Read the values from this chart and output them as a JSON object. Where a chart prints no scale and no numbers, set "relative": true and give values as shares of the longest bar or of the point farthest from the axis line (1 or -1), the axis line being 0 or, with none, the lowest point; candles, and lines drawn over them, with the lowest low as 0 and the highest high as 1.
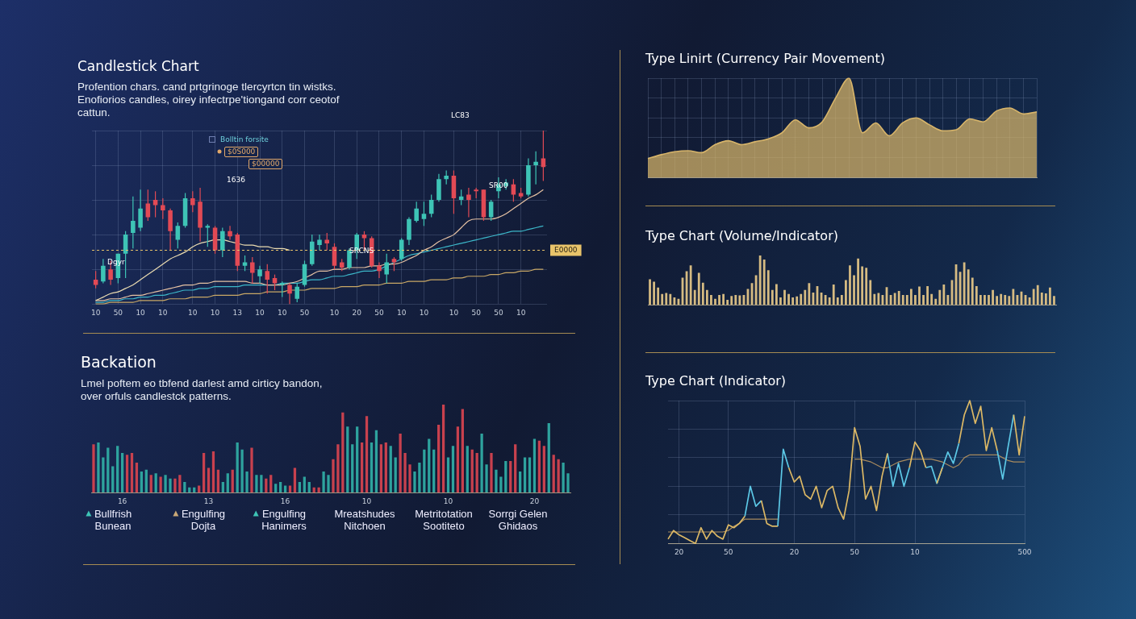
{
  "chart_data": [
    {
      "type": "candlestick",
      "title": "Candlestick Chart",
      "subtitle": "Profention chars. cand prtgrinoge tlercyrtcn tin wistks. Enofiorios candles, oirey infectrpe'tiongand corr ceotof cattun.",
      "relative": true,
      "grid": true,
      "categories": [
        "10",
        null,
        null,
        "50",
        null,
        null,
        "10",
        null,
        null,
        "10",
        null,
        null,
        null,
        "10",
        null,
        null,
        "10",
        null,
        null,
        "13",
        null,
        null,
        "10",
        null,
        null,
        "10",
        null,
        null,
        "50",
        null,
        null,
        null,
        "10",
        null,
        null,
        "20",
        null,
        null,
        "50",
        null,
        null,
        "10",
        null,
        null,
        "10",
        null,
        null,
        null,
        "10",
        null,
        null,
        "50",
        null,
        null,
        "50",
        null,
        null,
        "10",
        null,
        null,
        null
      ],
      "ohlc": [
        [
          0.14,
          0.19,
          0.09,
          0.11
        ],
        [
          0.13,
          0.26,
          0.12,
          0.22
        ],
        [
          0.2,
          0.25,
          0.11,
          0.14
        ],
        [
          0.15,
          0.29,
          0.12,
          0.29
        ],
        [
          0.29,
          0.42,
          0.15,
          0.4
        ],
        [
          0.41,
          0.62,
          0.32,
          0.48
        ],
        [
          0.44,
          0.66,
          0.42,
          0.55
        ],
        [
          0.58,
          0.66,
          0.48,
          0.5
        ],
        [
          0.6,
          0.65,
          0.5,
          0.57
        ],
        [
          0.57,
          0.61,
          0.49,
          0.54
        ],
        [
          0.54,
          0.55,
          0.31,
          0.42
        ],
        [
          0.37,
          0.47,
          0.32,
          0.45
        ],
        [
          0.45,
          0.64,
          0.44,
          0.61
        ],
        [
          0.61,
          0.65,
          0.53,
          0.57
        ],
        [
          0.59,
          0.67,
          0.36,
          0.44
        ],
        [
          0.44,
          0.46,
          0.33,
          0.45
        ],
        [
          0.44,
          0.45,
          0.29,
          0.31
        ],
        [
          0.31,
          0.44,
          0.27,
          0.42
        ],
        [
          0.42,
          0.45,
          0.37,
          0.39
        ],
        [
          0.4,
          0.41,
          0.19,
          0.22
        ],
        [
          0.22,
          0.28,
          0.19,
          0.24
        ],
        [
          0.24,
          0.27,
          0.12,
          0.18
        ],
        [
          0.16,
          0.22,
          0.12,
          0.2
        ],
        [
          0.19,
          0.23,
          0.06,
          0.14
        ],
        [
          0.15,
          0.17,
          0.08,
          0.12
        ],
        [
          0.11,
          0.13,
          0.04,
          0.12
        ],
        [
          0.11,
          0.12,
          0,
          0.06
        ],
        [
          0.03,
          0.12,
          0.01,
          0.1
        ],
        [
          0.11,
          0.25,
          0.1,
          0.23
        ],
        [
          0.23,
          0.4,
          0.22,
          0.36
        ],
        [
          0.34,
          0.4,
          0.31,
          0.37
        ],
        [
          0.37,
          0.41,
          0.31,
          0.35
        ],
        [
          0.33,
          0.35,
          0.2,
          0.22
        ],
        [
          0.24,
          0.26,
          0.19,
          0.21
        ],
        [
          0.21,
          0.32,
          0.2,
          0.31
        ],
        [
          0.31,
          0.41,
          0.26,
          0.4
        ],
        [
          0.4,
          0.42,
          0.31,
          0.38
        ],
        [
          0.38,
          0.39,
          0.21,
          0.22
        ],
        [
          0.22,
          0.24,
          0.15,
          0.19
        ],
        [
          0.17,
          0.29,
          0.12,
          0.24
        ],
        [
          0.26,
          0.27,
          0.19,
          0.24
        ],
        [
          0.26,
          0.38,
          0.25,
          0.37
        ],
        [
          0.37,
          0.5,
          0.34,
          0.49
        ],
        [
          0.48,
          0.59,
          0.47,
          0.55
        ],
        [
          0.49,
          0.59,
          0.45,
          0.52
        ],
        [
          0.52,
          0.63,
          0.5,
          0.6
        ],
        [
          0.6,
          0.75,
          0.59,
          0.72
        ],
        [
          0.72,
          0.77,
          0.69,
          0.74
        ],
        [
          0.74,
          0.77,
          0.52,
          0.61
        ],
        [
          0.6,
          0.66,
          0.57,
          0.62
        ],
        [
          0.63,
          0.67,
          0.5,
          0.6
        ],
        [
          0.66,
          0.67,
          0.61,
          0.65
        ],
        [
          0.66,
          0.66,
          0.48,
          0.5
        ],
        [
          0.5,
          0.6,
          0.48,
          0.59
        ],
        [
          0.65,
          0.73,
          0.61,
          0.69
        ],
        [
          0.68,
          0.72,
          0.66,
          0.7
        ],
        [
          0.69,
          0.72,
          0.59,
          0.63
        ],
        [
          0.64,
          0.67,
          0.61,
          0.62
        ],
        [
          0.63,
          0.84,
          0.62,
          0.8
        ],
        [
          0.8,
          0.88,
          0.69,
          0.82
        ],
        [
          0.84,
          1,
          0.71,
          0.79
        ]
      ],
      "colors": [
        "#e24a55",
        "#3ec4b6",
        "#e24a55",
        "#3ec4b6",
        "#3ec4b6",
        "#3ec4b6",
        "#3ec4b6",
        "#e24a55",
        "#e24a55",
        "#e24a55",
        "#e24a55",
        "#3ec4b6",
        "#3ec4b6",
        "#e24a55",
        "#e24a55",
        "#3ec4b6",
        "#e24a55",
        "#3ec4b6",
        "#e24a55",
        "#e24a55",
        "#3ec4b6",
        "#e24a55",
        "#3ec4b6",
        "#e24a55",
        "#e24a55",
        "#3ec4b6",
        "#e24a55",
        "#3ec4b6",
        "#3ec4b6",
        "#3ec4b6",
        "#3ec4b6",
        "#e24a55",
        "#e24a55",
        "#e24a55",
        "#3ec4b6",
        "#3ec4b6",
        "#e24a55",
        "#e24a55",
        "#e24a55",
        "#3ec4b6",
        "#e24a55",
        "#3ec4b6",
        "#3ec4b6",
        "#3ec4b6",
        "#3ec4b6",
        "#3ec4b6",
        "#3ec4b6",
        "#3ec4b6",
        "#e24a55",
        "#3ec4b6",
        "#e24a55",
        "#e24a55",
        "#e24a55",
        "#3ec4b6",
        "#3ec4b6",
        "#3ec4b6",
        "#e24a55",
        "#e24a55",
        "#3ec4b6",
        "#3ec4b6",
        "#e24a55"
      ],
      "series": [
        {
          "type": "line",
          "color": "#eadbb0",
          "values": [
            0.02,
            0.04,
            0.06,
            0.07,
            0.09,
            0.11,
            0.14,
            0.17,
            0.2,
            0.23,
            0.26,
            0.28,
            0.3,
            0.33,
            0.35,
            0.36,
            0.37,
            0.37,
            0.36,
            0.35,
            0.34,
            0.34,
            0.33,
            0.33,
            0.32,
            0.32,
            0.31,
            null,
            null,
            null,
            null,
            null,
            null,
            null,
            null,
            null,
            null,
            null,
            null,
            null,
            null,
            null,
            null,
            null,
            null,
            null,
            null,
            null,
            null,
            null,
            null,
            null,
            null,
            null,
            null,
            null,
            null,
            null,
            null,
            null,
            null
          ]
        },
        {
          "type": "line",
          "color": "#e6c2a4",
          "values": [
            0.02,
            0.02,
            0.03,
            0.03,
            0.04,
            0.05,
            0.05,
            0.06,
            0.07,
            0.08,
            0.09,
            0.1,
            0.11,
            0.11,
            0.12,
            0.12,
            0.13,
            0.13,
            0.13,
            0.13,
            0.13,
            0.12,
            0.12,
            0.11,
            0.11,
            0.11,
            0.12,
            0.13,
            0.15,
            0.17,
            0.19,
            0.19,
            0.2,
            0.2,
            0.21,
            0.21,
            0.21,
            0.22,
            0.22,
            0.23,
            0.23,
            0.24,
            0.26,
            0.28,
            0.31,
            0.33,
            0.36,
            0.38,
            0.4,
            0.44,
            0.48,
            0.49,
            0.49,
            0.49,
            0.5,
            0.52,
            0.55,
            0.58,
            0.61,
            0.63,
            0.66
          ]
        },
        {
          "type": "line",
          "color": "#3cb7c9",
          "values": [
            0.01,
            0.01,
            0.02,
            0.02,
            0.03,
            0.03,
            0.04,
            0.04,
            0.05,
            0.05,
            0.06,
            0.07,
            0.08,
            0.08,
            0.09,
            0.09,
            0.1,
            0.1,
            0.1,
            0.1,
            0.11,
            0.11,
            0.11,
            0.11,
            0.11,
            0.12,
            0.12,
            0.12,
            0.13,
            0.14,
            0.14,
            0.15,
            0.16,
            0.16,
            0.17,
            0.18,
            0.19,
            0.19,
            0.2,
            0.22,
            0.24,
            0.26,
            0.28,
            0.29,
            0.3,
            0.31,
            0.32,
            0.33,
            0.34,
            0.35,
            0.36,
            0.37,
            0.38,
            0.39,
            0.4,
            0.41,
            0.42,
            0.42,
            0.43,
            0.44,
            0.45
          ]
        },
        {
          "type": "line",
          "color": "#c9a866",
          "values": [
            0,
            0,
            0.01,
            0.01,
            0.01,
            0.01,
            0.02,
            0.02,
            0.02,
            0.02,
            0.03,
            0.03,
            0.03,
            0.04,
            0.04,
            0.04,
            0.05,
            0.05,
            0.05,
            0.05,
            0.06,
            0.06,
            0.06,
            0.07,
            0.07,
            0.07,
            0.08,
            0.08,
            0.08,
            0.09,
            0.09,
            0.09,
            0.09,
            0.1,
            0.1,
            0.1,
            0.11,
            0.11,
            0.11,
            0.12,
            0.12,
            0.12,
            0.13,
            0.13,
            0.13,
            0.14,
            0.14,
            0.14,
            0.15,
            0.15,
            0.16,
            0.16,
            0.16,
            0.17,
            0.17,
            0.18,
            0.18,
            0.19,
            0.19,
            0.2,
            0.2
          ]
        }
      ],
      "ref_lines": [
        {
          "axis": "y",
          "value": 0.31,
          "label": "E0000",
          "color": "#e9c46a",
          "line_style": "dashed"
        }
      ],
      "annotations": [
        "Bolltin forsite",
        "$0S000",
        "$00000",
        "1636",
        "LC83",
        "SR00",
        "SRCNS",
        "Dgyr"
      ]
    },
    {
      "type": "bar",
      "title": "Backation",
      "subtitle": "Lmel poftem eo tbfend darlest amd cirticy bandon, over orfuls candlestck patterns.",
      "relative": true,
      "categories": [
        null,
        null,
        null,
        null,
        null,
        null,
        "16",
        null,
        null,
        null,
        null,
        null,
        null,
        null,
        null,
        null,
        null,
        null,
        null,
        null,
        null,
        null,
        null,
        null,
        "13",
        null,
        null,
        null,
        null,
        null,
        null,
        null,
        null,
        null,
        null,
        null,
        null,
        null,
        null,
        null,
        "16",
        null,
        null,
        null,
        null,
        null,
        null,
        null,
        null,
        null,
        null,
        null,
        null,
        null,
        null,
        null,
        null,
        "10",
        null,
        null,
        null,
        null,
        null,
        null,
        null,
        null,
        null,
        null,
        null,
        null,
        null,
        null,
        null,
        null,
        "10",
        null,
        null,
        null,
        null,
        null,
        null,
        null,
        null,
        null,
        null,
        null,
        null,
        null,
        null,
        null,
        null,
        null,
        "20",
        null,
        null,
        null,
        null,
        null,
        null,
        null
      ],
      "values": [
        0.55,
        0.57,
        0.4,
        0.51,
        0.3,
        0.53,
        0.45,
        0.43,
        0.45,
        0.34,
        0.24,
        0.26,
        0.2,
        0.22,
        0.18,
        0.2,
        0.16,
        0.16,
        0.2,
        0.12,
        0.06,
        0.06,
        0.08,
        0.45,
        0.28,
        0.47,
        0.26,
        0.12,
        0.22,
        0.26,
        0.57,
        0.49,
        0.24,
        0.51,
        0.2,
        0.2,
        0.16,
        0.2,
        0.1,
        0.12,
        0.08,
        0.08,
        0.28,
        0.12,
        0.18,
        0.12,
        0.06,
        0.06,
        0.24,
        0.2,
        0.38,
        0.55,
        0.91,
        0.75,
        0.55,
        0.75,
        0.57,
        0.87,
        0.57,
        0.71,
        0.55,
        0.57,
        0.53,
        0.4,
        0.67,
        0.45,
        0.32,
        0.24,
        0.34,
        0.49,
        0.61,
        0.49,
        0.77,
        1,
        0.4,
        0.53,
        0.75,
        0.95,
        0.53,
        0.49,
        0.45,
        0.67,
        0.32,
        0.45,
        0.26,
        0.18,
        0.36,
        0.36,
        0.55,
        0.24,
        0.4,
        0.4,
        0.61,
        0.59,
        0.53,
        0.79,
        0.43,
        0.38,
        0.34,
        0.22
      ],
      "colors": [
        "#c8414e",
        "#2ea39e",
        "#2ea39e",
        "#2ea39e",
        "#2ea39e",
        "#2ea39e",
        "#2ea39e",
        "#c8414e",
        "#c8414e",
        "#c8414e",
        "#2ea39e",
        "#2ea39e",
        "#c8414e",
        "#2ea39e",
        "#c8414e",
        "#2ea39e",
        "#2ea39e",
        "#c8414e",
        "#c8414e",
        "#2ea39e",
        "#2ea39e",
        "#2ea39e",
        "#c8414e",
        "#c8414e",
        "#c8414e",
        "#c8414e",
        "#c8414e",
        "#2ea39e",
        "#2ea39e",
        "#c8414e",
        "#2ea39e",
        "#2ea39e",
        "#2ea39e",
        "#c8414e",
        "#2ea39e",
        "#2ea39e",
        "#c8414e",
        "#c8414e",
        "#2ea39e",
        "#2ea39e",
        "#2ea39e",
        "#c8414e",
        "#c8414e",
        "#2ea39e",
        "#2ea39e",
        "#2ea39e",
        "#c8414e",
        "#c8414e",
        "#2ea39e",
        "#2ea39e",
        "#c8414e",
        "#c8414e",
        "#c8414e",
        "#2ea39e",
        "#2ea39e",
        "#2ea39e",
        "#c8414e",
        "#c8414e",
        "#2ea39e",
        "#2ea39e",
        "#c8414e",
        "#c8414e",
        "#2ea39e",
        "#2ea39e",
        "#c8414e",
        "#c8414e",
        "#c8414e",
        "#2ea39e",
        "#2ea39e",
        "#2ea39e",
        "#2ea39e",
        "#2ea39e",
        "#c8414e",
        "#c8414e",
        "#2ea39e",
        "#2ea39e",
        "#c8414e",
        "#c8414e",
        "#2ea39e",
        "#c8414e",
        "#c8414e",
        "#2ea39e",
        "#2ea39e",
        "#c8414e",
        "#2ea39e",
        "#2ea39e",
        "#2ea39e",
        "#c8414e",
        "#c8414e",
        "#2ea39e",
        "#2ea39e",
        "#2ea39e",
        "#2ea39e",
        "#c8414e",
        "#c8414e",
        "#2ea39e",
        "#c8414e",
        "#c8414e",
        "#2ea39e",
        "#2ea39e"
      ],
      "annotations": [
        "Bullfrish\nBunean",
        "Engulfing\nDojta",
        "Engulfing\nHanimers",
        "Mreatshudes\nNitchoen",
        "Metritotation\nSootiteto",
        "Sorrgi Gelen\nGhidaos"
      ]
    },
    {
      "type": "area",
      "title": "Type Linirt (Currency Pair Movement)",
      "relative": true,
      "grid": true,
      "color": "#d8b56a",
      "categories": [
        null,
        null,
        null,
        null,
        null,
        null,
        null,
        null,
        null,
        null,
        null,
        null,
        null,
        null,
        null,
        null,
        null,
        null,
        null,
        null,
        null,
        null,
        null,
        null,
        null,
        null,
        null,
        null,
        null,
        null
      ],
      "values": [
        0.19,
        0.23,
        0.26,
        0.27,
        0.25,
        0.33,
        0.37,
        0.33,
        0.36,
        0.39,
        0.45,
        0.58,
        0.5,
        0.56,
        0.8,
        1,
        0.45,
        0.55,
        0.42,
        0.55,
        0.6,
        0.53,
        0.47,
        0.48,
        0.59,
        0.56,
        0.67,
        0.7,
        0.64,
        0.66
      ]
    },
    {
      "type": "bar",
      "title": "Type Chart (Volume/Indicator)",
      "relative": true,
      "color": "#d6bb82",
      "categories": [
        null,
        null,
        null,
        null,
        null,
        null,
        null,
        null,
        null,
        null,
        null,
        null,
        null,
        null,
        null,
        null,
        null,
        null,
        null,
        null,
        null,
        null,
        null,
        null,
        null,
        null,
        null,
        null,
        null,
        null,
        null,
        null,
        null,
        null,
        null,
        null,
        null,
        null,
        null,
        null,
        null,
        null,
        null,
        null,
        null,
        null,
        null,
        null,
        null,
        null,
        null,
        null,
        null,
        null,
        null,
        null,
        null,
        null,
        null,
        null,
        null,
        null,
        null,
        null,
        null,
        null,
        null,
        null,
        null,
        null,
        null,
        null,
        null,
        null,
        null,
        null,
        null,
        null,
        null,
        null,
        null,
        null,
        null,
        null,
        null,
        null,
        null,
        null,
        null,
        null,
        null,
        null,
        null,
        null,
        null,
        null,
        null,
        null,
        null,
        null
      ],
      "values": [
        0.52,
        0.47,
        0.35,
        0.22,
        0.24,
        0.22,
        0.15,
        0.12,
        0.55,
        0.68,
        0.8,
        0.3,
        0.65,
        0.45,
        0.3,
        0.2,
        0.12,
        0.2,
        0.22,
        0.1,
        0.18,
        0.2,
        0.19,
        0.2,
        0.32,
        0.44,
        0.6,
        1,
        0.92,
        0.7,
        0.3,
        0.42,
        0.15,
        0.3,
        0.22,
        0.15,
        0.17,
        0.22,
        0.3,
        0.44,
        0.25,
        0.38,
        0.25,
        0.2,
        0.15,
        0.41,
        0.15,
        0.2,
        0.5,
        0.8,
        0.6,
        0.94,
        0.78,
        0.75,
        0.5,
        0.22,
        0.24,
        0.2,
        0.36,
        0.2,
        0.24,
        0.28,
        0.2,
        0.2,
        0.32,
        0.2,
        0.37,
        0.2,
        0.38,
        0.22,
        0.12,
        0.3,
        0.41,
        0.2,
        0.5,
        0.82,
        0.67,
        0.86,
        0.72,
        0.55,
        0.38,
        0.2,
        0.2,
        0.2,
        0.3,
        0.18,
        0.22,
        0.2,
        0.18,
        0.32,
        0.2,
        0.27,
        0.2,
        0.15,
        0.32,
        0.4,
        0.25,
        0.23,
        0.35,
        0.18
      ]
    },
    {
      "type": "line",
      "title": "Type Chart (Indicator)",
      "relative": true,
      "grid": true,
      "categories": [
        null,
        null,
        "20",
        null,
        null,
        null,
        null,
        null,
        null,
        null,
        null,
        "50",
        null,
        null,
        null,
        null,
        null,
        null,
        null,
        null,
        null,
        null,
        null,
        "20",
        null,
        null,
        null,
        null,
        null,
        null,
        null,
        null,
        null,
        null,
        "50",
        null,
        null,
        null,
        null,
        null,
        null,
        null,
        null,
        null,
        null,
        "10",
        null,
        null,
        null,
        null,
        null,
        null,
        null,
        null,
        null,
        null,
        null,
        null,
        null,
        null,
        null,
        null,
        null,
        null,
        null,
        "500"
      ],
      "series": [
        {
          "color": "#dcb865",
          "values": [
            0.03,
            0.09,
            0.06,
            0.04,
            0.02,
            0,
            0.11,
            0.03,
            0.09,
            0.05,
            0.03,
            0.13,
            0.11,
            0.14,
            0.19,
            null,
            null,
            0.3,
            0.14,
            0.12,
            0.12,
            null,
            0.53,
            0.43,
            0.47,
            0.34,
            0.31,
            0.4,
            0.25,
            0.37,
            0.4,
            0.25,
            0.17,
            0.37,
            0.81,
            0.68,
            0.31,
            0.4,
            0.23,
            0.47,
            0.63,
            null,
            null,
            null,
            0.53,
            0.71,
            0.65,
            0.53,
            null,
            0.42,
            0.53,
            null,
            null,
            0.7,
            0.9,
            1,
            0.84,
            0.96,
            0.65,
            0.81,
            0.65,
            null,
            null,
            0.9,
            0.62,
            0.89
          ]
        },
        {
          "color": "#5cc8e6",
          "values": [
            null,
            null,
            null,
            null,
            null,
            null,
            null,
            null,
            null,
            null,
            null,
            null,
            null,
            null,
            0.19,
            0.4,
            0.26,
            0.3,
            null,
            null,
            0.12,
            0.66,
            0.53,
            null,
            null,
            null,
            null,
            null,
            null,
            null,
            null,
            null,
            null,
            null,
            null,
            null,
            null,
            null,
            null,
            null,
            0.63,
            0.4,
            0.56,
            0.4,
            0.53,
            null,
            null,
            0.53,
            0.54,
            0.42,
            0.53,
            0.64,
            0.56,
            0.7,
            null,
            null,
            null,
            null,
            null,
            null,
            0.65,
            0.45,
            0.68,
            0.9,
            null,
            null
          ]
        },
        {
          "color": "#a88a5e",
          "values": [
            0.08,
            0.08,
            0.08,
            0.08,
            0.08,
            0.08,
            0.08,
            0.08,
            0.08,
            0.08,
            0.08,
            0.09,
            0.12,
            0.14,
            0.17,
            0.17,
            0.17,
            0.17,
            0.17,
            0.17,
            0.17,
            null,
            null,
            null,
            null,
            null,
            null,
            null,
            null,
            null,
            null,
            null,
            null,
            null,
            0.59,
            0.59,
            0.58,
            0.57,
            0.55,
            0.53,
            0.53,
            0.55,
            0.57,
            0.58,
            0.59,
            0.59,
            0.59,
            0.59,
            0.59,
            0.58,
            0.57,
            0.55,
            0.53,
            0.55,
            0.6,
            0.62,
            0.62,
            0.62,
            0.62,
            0.62,
            0.62,
            0.6,
            0.58,
            0.57,
            0.57,
            0.57
          ]
        }
      ]
    }
  ]
}
